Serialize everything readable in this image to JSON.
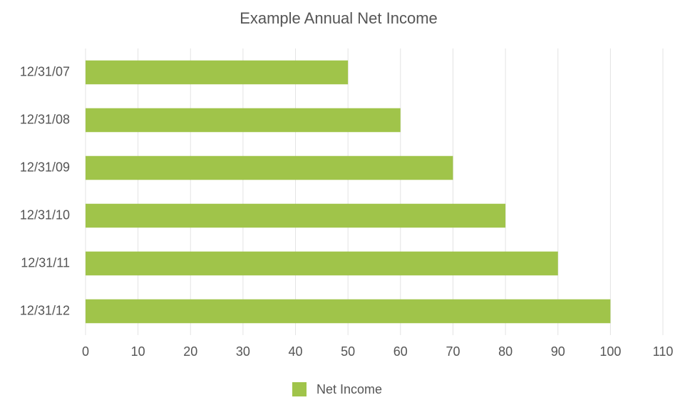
{
  "chart_data": {
    "type": "bar",
    "orientation": "horizontal",
    "title": "Example Annual Net Income",
    "categories": [
      "12/31/07",
      "12/31/08",
      "12/31/09",
      "12/31/10",
      "12/31/11",
      "12/31/12"
    ],
    "series": [
      {
        "name": "Net Income",
        "color": "#a0c44a",
        "values": [
          50,
          60,
          70,
          80,
          90,
          100
        ]
      }
    ],
    "xlim": [
      0,
      110
    ],
    "xticks": [
      0,
      10,
      20,
      30,
      40,
      50,
      60,
      70,
      80,
      90,
      100,
      110
    ],
    "grid": true,
    "legend": "bottom"
  }
}
